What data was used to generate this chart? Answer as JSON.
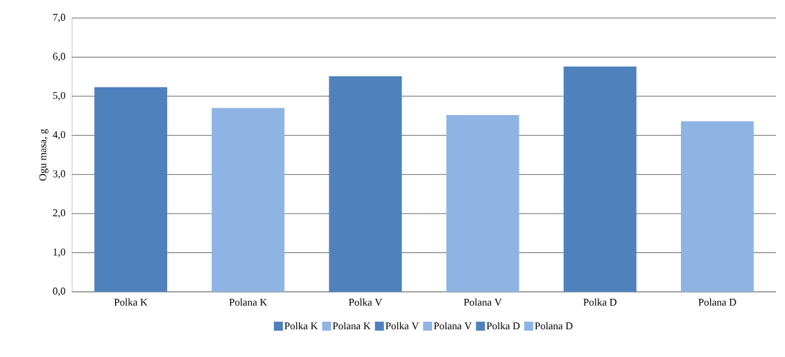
{
  "chart_data": {
    "type": "bar",
    "ylabel": "Ogu masa, g",
    "categories": [
      "Polka K",
      "Polana K",
      "Polka V",
      "Polana V",
      "Polka D",
      "Polana D"
    ],
    "series": [
      {
        "name": "Polka K",
        "color": "#4f81bd",
        "values": [
          5.23,
          null,
          null,
          null,
          null,
          null
        ]
      },
      {
        "name": "Polana K",
        "color": "#8eb4e3",
        "values": [
          null,
          4.7,
          null,
          null,
          null,
          null
        ]
      },
      {
        "name": "Polka V",
        "color": "#4f81bd",
        "values": [
          null,
          null,
          5.51,
          null,
          null,
          null
        ]
      },
      {
        "name": "Polana V",
        "color": "#8eb4e3",
        "values": [
          null,
          null,
          null,
          4.52,
          null,
          null
        ]
      },
      {
        "name": "Polka D",
        "color": "#4f81bd",
        "values": [
          null,
          null,
          null,
          null,
          5.76,
          null
        ]
      },
      {
        "name": "Polana D",
        "color": "#8eb4e3",
        "values": [
          null,
          null,
          null,
          null,
          null,
          4.36
        ]
      }
    ],
    "ylim": [
      0,
      7
    ],
    "yticks": [
      {
        "value": 0,
        "label": "0,0"
      },
      {
        "value": 1,
        "label": "1,0"
      },
      {
        "value": 2,
        "label": "2,0"
      },
      {
        "value": 3,
        "label": "3,0"
      },
      {
        "value": 4,
        "label": "4,0"
      },
      {
        "value": 5,
        "label": "5,0"
      },
      {
        "value": 6,
        "label": "6,0"
      },
      {
        "value": 7,
        "label": "7,0"
      }
    ],
    "grid": "y",
    "legend": "bottom"
  }
}
